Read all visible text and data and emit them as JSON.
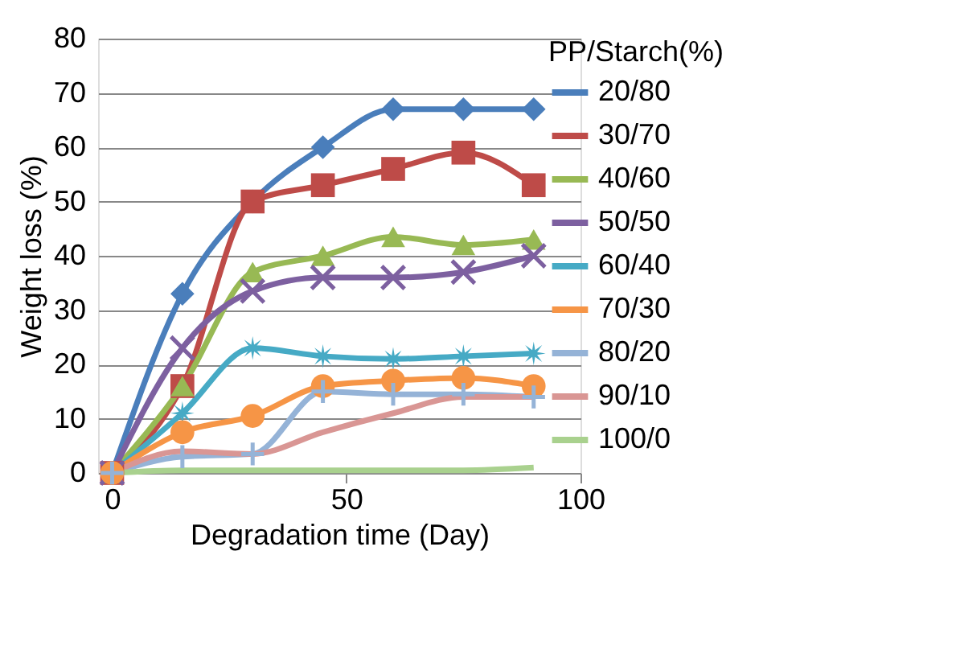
{
  "chart_data": {
    "type": "line",
    "xlabel": "Degradation time (Day)",
    "ylabel": "Weight loss (%)",
    "legend_title": "PP/Starch(%)",
    "x": [
      0,
      15,
      30,
      45,
      60,
      75,
      90
    ],
    "xlim": [
      -3,
      100
    ],
    "xticks": [
      0,
      50,
      100
    ],
    "ylim": [
      0,
      80
    ],
    "yticks": [
      0,
      10,
      20,
      30,
      40,
      50,
      60,
      70,
      80
    ],
    "grid": "y",
    "legend": "right",
    "line_style": "solid",
    "series": [
      {
        "name": "20/80",
        "color": "#4a7ebb",
        "marker": "diamond",
        "values": [
          0,
          33,
          50,
          60,
          67,
          67,
          67
        ]
      },
      {
        "name": "30/70",
        "color": "#be4b48",
        "marker": "square",
        "values": [
          0,
          16,
          50,
          53,
          56,
          59,
          53
        ]
      },
      {
        "name": "40/60",
        "color": "#98b954",
        "marker": "triangle",
        "values": [
          0,
          16,
          37,
          40,
          43.5,
          42,
          43
        ]
      },
      {
        "name": "50/50",
        "color": "#7d60a0",
        "marker": "x",
        "values": [
          0,
          23,
          33.5,
          36,
          36,
          37,
          40
        ]
      },
      {
        "name": "60/40",
        "color": "#46aac5",
        "marker": "star",
        "values": [
          0,
          11,
          23,
          21.5,
          21,
          21.5,
          22
        ]
      },
      {
        "name": "70/30",
        "color": "#f69546",
        "marker": "circle",
        "values": [
          0,
          7.5,
          10.5,
          16,
          17,
          17.5,
          16
        ]
      },
      {
        "name": "80/20",
        "color": "#95b3d7",
        "marker": "cross",
        "values": [
          0,
          3,
          3.5,
          15,
          14.5,
          14.5,
          14
        ]
      },
      {
        "name": "90/10",
        "color": "#d99694",
        "marker": "none",
        "values": [
          0,
          4,
          3.5,
          7.5,
          11,
          14,
          14
        ]
      },
      {
        "name": "100/0",
        "color": "#a9d18e",
        "marker": "none",
        "values": [
          0,
          0.5,
          0.5,
          0.5,
          0.5,
          0.5,
          1
        ]
      }
    ]
  }
}
